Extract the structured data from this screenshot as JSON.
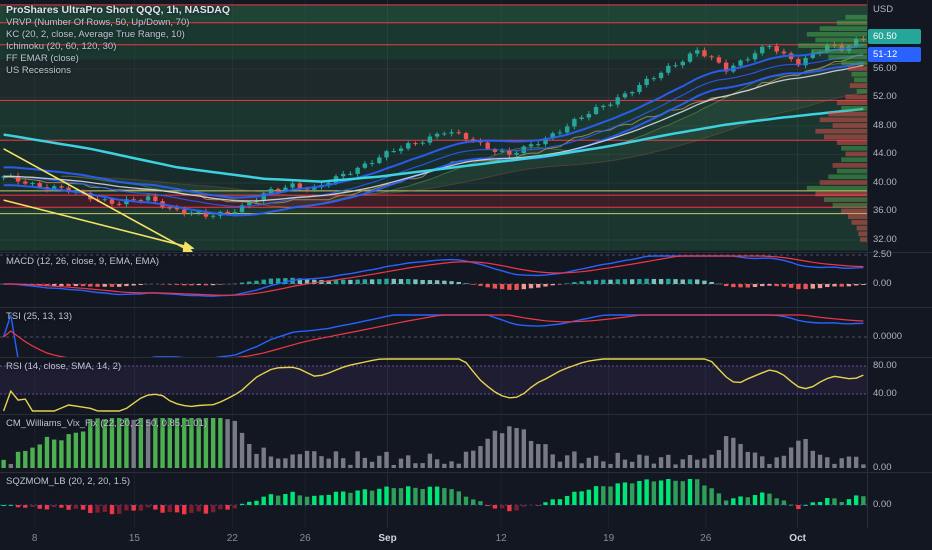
{
  "legend": {
    "title": "ProShares UltraPro Short QQQ, 1h, NASDAQ",
    "indicators": [
      "VRVP (Number Of Rows, 50, Up/Down, 70)",
      "KC (20, 2, close, Average True Range, 10)",
      "Ichimoku (20, 60, 120, 30)",
      "FF EMAR (close)",
      "US Recessions"
    ]
  },
  "pane_titles": [
    "MACD (12, 26, close, 9, EMA, EMA)",
    "TSI (25, 13, 13)",
    "RSI (14, close, SMA, 14, 2)",
    "CM_Williams_Vix_Fix (22, 20, 2, 50, 0.85, 1.01)",
    "SQZMOM_LB (20, 2, 20, 1.5)"
  ],
  "right_axis": {
    "currency": "USD",
    "last_price_badge": {
      "text": "60.50",
      "bg": "#26a69a"
    },
    "secondary_badge": {
      "text": "51-12",
      "bg": "#2962ff"
    },
    "price_labels": [
      "56.00",
      "52.00",
      "48.00",
      "44.00",
      "40.00",
      "36.00",
      "32.00"
    ],
    "macd_labels": [
      "2.50",
      "0.00"
    ],
    "tsi_label": "0.0000",
    "rsi_labels": [
      "80.00",
      "40.00"
    ],
    "wvf_label": "0.00",
    "sqz_label": "0.00"
  },
  "time_axis": {
    "ticks": [
      {
        "label": "8",
        "f": 0.04,
        "major": false
      },
      {
        "label": "15",
        "f": 0.155,
        "major": false
      },
      {
        "label": "22",
        "f": 0.268,
        "major": false
      },
      {
        "label": "26",
        "f": 0.352,
        "major": false
      },
      {
        "label": "Sep",
        "f": 0.447,
        "major": true
      },
      {
        "label": "12",
        "f": 0.578,
        "major": false
      },
      {
        "label": "19",
        "f": 0.702,
        "major": false
      },
      {
        "label": "26",
        "f": 0.814,
        "major": false
      },
      {
        "label": "Oct",
        "f": 0.92,
        "major": true
      }
    ]
  },
  "chart_data": {
    "type": "candlestick",
    "interval": "1h",
    "title": "ProShares UltraPro Short QQQ, 1h, NASDAQ",
    "ylim": [
      30.5,
      65.7
    ],
    "price_gridlines": [
      56,
      52,
      48,
      44,
      40,
      36,
      32
    ],
    "close_waypoints": [
      [
        0,
        40.8
      ],
      [
        4,
        39.8
      ],
      [
        8,
        39.2
      ],
      [
        12,
        38.0
      ],
      [
        16,
        37.2
      ],
      [
        20,
        37.8
      ],
      [
        24,
        36.2
      ],
      [
        28,
        35.3
      ],
      [
        31,
        35.9
      ],
      [
        34,
        37.2
      ],
      [
        37,
        38.8
      ],
      [
        40,
        39.8
      ],
      [
        43,
        39.1
      ],
      [
        46,
        40.6
      ],
      [
        49,
        42.2
      ],
      [
        52,
        43.6
      ],
      [
        55,
        44.9
      ],
      [
        58,
        46.1
      ],
      [
        61,
        47.2
      ],
      [
        64,
        46.3
      ],
      [
        67,
        45.1
      ],
      [
        70,
        43.9
      ],
      [
        73,
        45.2
      ],
      [
        76,
        46.9
      ],
      [
        79,
        48.6
      ],
      [
        82,
        50.3
      ],
      [
        85,
        52.0
      ],
      [
        88,
        53.6
      ],
      [
        90,
        54.8
      ],
      [
        92,
        56.2
      ],
      [
        94,
        57.4
      ],
      [
        96,
        58.6
      ],
      [
        98,
        57.3
      ],
      [
        100,
        55.9
      ],
      [
        102,
        57.1
      ],
      [
        104,
        58.4
      ],
      [
        106,
        59.2
      ],
      [
        108,
        57.8
      ],
      [
        110,
        56.9
      ],
      [
        112,
        58.2
      ],
      [
        114,
        59.3
      ],
      [
        116,
        58.6
      ],
      [
        118,
        59.9
      ],
      [
        119,
        60.4
      ]
    ],
    "cyan_ma_waypoints": [
      [
        0,
        46.8
      ],
      [
        12,
        44.8
      ],
      [
        24,
        42.2
      ],
      [
        36,
        40.6
      ],
      [
        44,
        40.2
      ],
      [
        52,
        40.9
      ],
      [
        60,
        41.9
      ],
      [
        68,
        42.9
      ],
      [
        76,
        43.9
      ],
      [
        84,
        45.2
      ],
      [
        92,
        46.8
      ],
      [
        100,
        48.2
      ],
      [
        108,
        49.2
      ],
      [
        119,
        50.4
      ]
    ],
    "zones": [
      {
        "top": 65.0,
        "bottom": 62.5,
        "color": "rgba(46,125,80,0.45)"
      },
      {
        "top": 62.5,
        "bottom": 57.3,
        "color": "rgba(40,110,70,0.38)"
      },
      {
        "top": 57.3,
        "bottom": 51.6,
        "color": "rgba(70,110,75,0.22)"
      },
      {
        "top": 51.6,
        "bottom": 46.0,
        "color": "rgba(46,125,80,0.30)"
      },
      {
        "top": 46.0,
        "bottom": 38.3,
        "color": "rgba(40,110,70,0.26)"
      },
      {
        "top": 38.3,
        "bottom": 36.6,
        "color": "rgba(150,45,55,0.30)"
      },
      {
        "top": 36.6,
        "bottom": 30.5,
        "color": "rgba(46,125,80,0.30)"
      }
    ],
    "hlines": [
      {
        "price": 65.0,
        "color": "#f23645"
      },
      {
        "price": 62.5,
        "color": "#f23645"
      },
      {
        "price": 59.4,
        "color": "#f23645"
      },
      {
        "price": 51.6,
        "color": "#f23645"
      },
      {
        "price": 46.0,
        "color": "#f23645"
      },
      {
        "price": 38.3,
        "color": "#f23645"
      },
      {
        "price": 36.6,
        "color": "#f23645"
      },
      {
        "price": 38.9,
        "color": "#c9cc6f"
      },
      {
        "price": 35.7,
        "color": "#c9cc6f"
      }
    ],
    "trendlines": [
      {
        "points": [
          [
            0,
            44.8
          ],
          [
            26,
            30.3
          ]
        ]
      },
      {
        "points": [
          [
            0,
            37.6
          ],
          [
            26,
            30.9
          ]
        ]
      }
    ],
    "vrvp": {
      "price_top": 63.6,
      "row_height": 0.8,
      "lengths": [
        0.25,
        0.35,
        0.55,
        0.7,
        0.6,
        0.8,
        0.65,
        0.45,
        0.3,
        0.22,
        0.18,
        0.15,
        0.2,
        0.12,
        0.25,
        0.35,
        0.3,
        0.45,
        0.55,
        0.4,
        0.6,
        0.5,
        0.35,
        0.3,
        0.25,
        0.3,
        0.4,
        0.35,
        0.45,
        0.55,
        0.7,
        0.6,
        0.5,
        0.4,
        0.3,
        0.22,
        0.18,
        0.12,
        0.1,
        0.08
      ],
      "dirs": [
        "u",
        "u",
        "u",
        "u",
        "u",
        "u",
        "u",
        "u",
        "u",
        "d",
        "u",
        "u",
        "d",
        "u",
        "d",
        "d",
        "u",
        "d",
        "d",
        "d",
        "d",
        "d",
        "d",
        "u",
        "d",
        "u",
        "d",
        "u",
        "u",
        "d",
        "u",
        "d",
        "u",
        "u",
        "d",
        "d",
        "d",
        "d",
        "d",
        "d"
      ]
    },
    "colors": {
      "background": "#131722",
      "candle_up": "#26a69a",
      "candle_down": "#ef5350",
      "kc": "#2962ff",
      "cyan": "#3cd2e0",
      "white_ma": "#d6d9e0",
      "red_level": "#f23645",
      "khaki_level": "#c9cc6f",
      "trendline": "#f3e264",
      "kijun": "#b89a5a",
      "ichimoku_cloud": "rgba(103,183,119,0.10)",
      "rsi": "#e5d44f",
      "macd_line": "#2962ff",
      "macd_signal": "#f23645",
      "macd_hist_up": "#26a69a",
      "macd_hist_up_dim": "#79c3bd",
      "macd_hist_down": "#ef5350",
      "macd_hist_down_dim": "#f19996",
      "vrvp_up": "rgba(76,175,80,0.50)",
      "vrvp_down": "rgba(239,83,80,0.50)",
      "wvf_gray": "#787b86",
      "wvf_green": "#4caf50",
      "sqz_up": "#00e676",
      "sqz_up_dim": "#2f9e5b",
      "sqz_down": "#f23645",
      "sqz_down_dim": "#7f1d2e"
    }
  }
}
